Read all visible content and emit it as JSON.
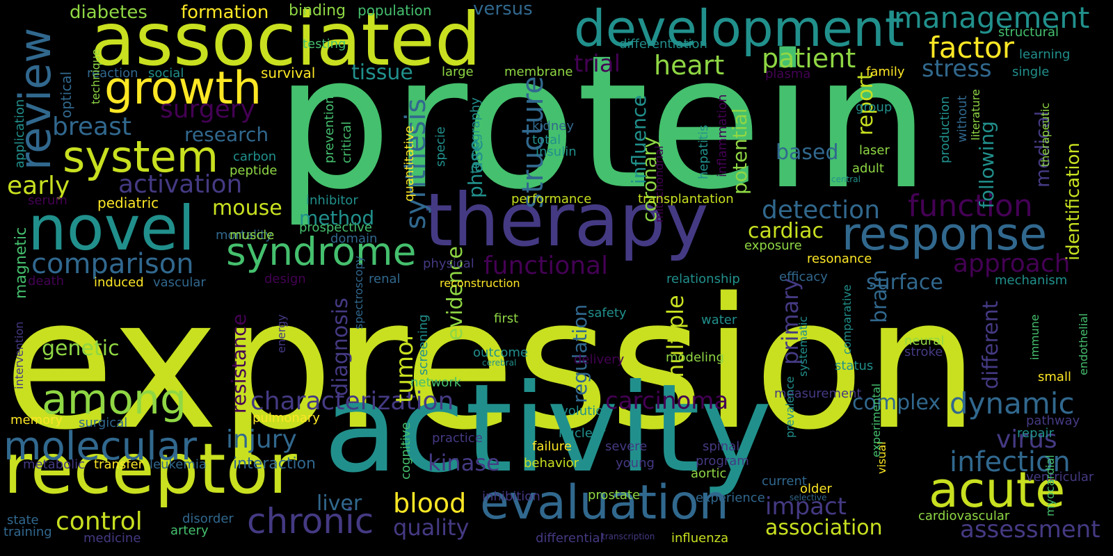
{
  "colors": {
    "background": "#000000",
    "y": "#c8e020",
    "g": "#45c06e",
    "t": "#21908c",
    "b": "#31688e",
    "i": "#443a83",
    "p": "#440154",
    "lg": "#8fd744",
    "gold": "#fde725"
  },
  "words": [
    "expression",
    "protein",
    "activity",
    "associated",
    "therapy",
    "development",
    "receptor",
    "novel",
    "growth",
    "evaluation",
    "response",
    "review",
    "system",
    "syndrome",
    "among",
    "acute",
    "molecular",
    "management",
    "chronic",
    "function",
    "comparison",
    "factor",
    "dynamic",
    "infection",
    "characterization",
    "patient",
    "synthesis",
    "activation",
    "heart",
    "structure",
    "carcinoma",
    "breast",
    "functional",
    "approach",
    "assessment",
    "detection",
    "blood",
    "control",
    "injury",
    "impact",
    "stress",
    "surgery",
    "early",
    "virus",
    "trial",
    "kinase",
    "tumor",
    "research",
    "mouse",
    "report",
    "genetic",
    "brain",
    "diagnosis",
    "association",
    "primary",
    "complex",
    "multiple",
    "cardiac",
    "based",
    "quality",
    "tissue",
    "medical",
    "phase",
    "evidence",
    "surface",
    "regulation",
    "method",
    "influence",
    "coronary",
    "potential",
    "liver",
    "different",
    "following",
    "resistance",
    "identification",
    "pediatric",
    "interaction",
    "diabetes",
    "formation",
    "versus",
    "population",
    "binding",
    "testing",
    "optical",
    "survival",
    "large",
    "membrane",
    "differentiation",
    "structural",
    "learning",
    "family",
    "plasma",
    "single",
    "reaction",
    "social",
    "technique",
    "application",
    "peptide",
    "carbon",
    "serum",
    "magnetic",
    "induced",
    "vascular",
    "death",
    "mortality",
    "muscle",
    "prospective",
    "domain",
    "prevention",
    "critical",
    "inhibitor",
    "specie",
    "quantitative",
    "tomography",
    "kidney",
    "total",
    "insulin",
    "mitochondrial",
    "hepatitis",
    "inflammation",
    "laser",
    "adult",
    "central",
    "production",
    "without",
    "literature",
    "therapeutic",
    "group",
    "performance",
    "transplantation",
    "exposure",
    "resonance",
    "physical",
    "reconstruction",
    "relationship",
    "efficacy",
    "mechanism",
    "design",
    "spectroscopy",
    "energy",
    "safety",
    "water",
    "first",
    "renal",
    "outcome",
    "cerebral",
    "delivery",
    "modeling",
    "screening",
    "intervention",
    "network",
    "systematic",
    "comparative",
    "status",
    "neural",
    "stroke",
    "immune",
    "endothelial",
    "small",
    "measurement",
    "prevalence",
    "evolution",
    "memory",
    "pulmonary",
    "surgical",
    "pathway",
    "repair",
    "nuclear",
    "practice",
    "failure",
    "severe",
    "spinal",
    "cognitive",
    "metabolic",
    "transfer",
    "leukemia",
    "behavior",
    "young",
    "program",
    "aortic",
    "current",
    "visual",
    "experimental",
    "ventricular",
    "older",
    "selective",
    "myocardial",
    "inhibition",
    "prostate",
    "experience",
    "cardiovascular",
    "state",
    "training",
    "disorder",
    "artery",
    "medicine",
    "differential",
    "transcription",
    "influenza"
  ]
}
